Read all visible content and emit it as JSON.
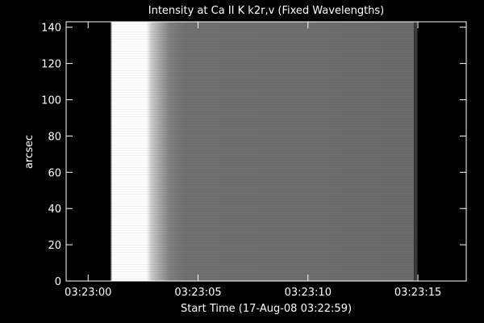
{
  "chart_data": {
    "type": "image",
    "title": "Intensity at Ca II K k2r,v (Fixed Wavelengths)",
    "xlabel": "Start Time (17-Aug-08 03:22:59)",
    "ylabel": "arcsec",
    "xlim": [
      0,
      18.2
    ],
    "ylim": [
      0,
      143
    ],
    "xticks": [
      {
        "value": 1,
        "label": "03:23:00"
      },
      {
        "value": 6,
        "label": "03:23:05"
      },
      {
        "value": 11,
        "label": "03:23:10"
      },
      {
        "value": 16,
        "label": "03:23:15"
      }
    ],
    "yticks": [
      0,
      20,
      40,
      60,
      80,
      100,
      120,
      140
    ]
  }
}
